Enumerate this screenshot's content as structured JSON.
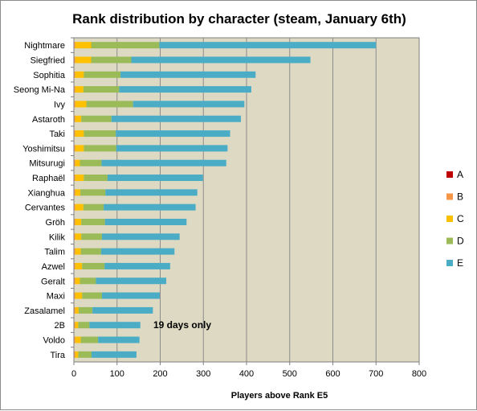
{
  "chart_data": {
    "type": "bar",
    "orientation": "horizontal",
    "stacked": true,
    "title": "Rank distribution by character (steam, January 6th)",
    "xlabel": "Players above Rank E5",
    "ylabel": "",
    "xlim": [
      0,
      800
    ],
    "xticks": [
      0,
      100,
      200,
      300,
      400,
      500,
      600,
      700,
      800
    ],
    "grid": true,
    "legend_position": "right",
    "categories": [
      "Nightmare",
      "Siegfried",
      "Sophitia",
      "Seong Mi-Na",
      "Ivy",
      "Astaroth",
      "Taki",
      "Yoshimitsu",
      "Mitsurugi",
      "Raphaël",
      "Xianghua",
      "Cervantes",
      "Gröh",
      "Kilik",
      "Talim",
      "Azwel",
      "Geralt",
      "Maxi",
      "Zasalamel",
      "2B",
      "Voldo",
      "Tira"
    ],
    "series": [
      {
        "name": "A",
        "color": "#c00000",
        "values": [
          1,
          1,
          1,
          1,
          1,
          1,
          1,
          1,
          1,
          1,
          1,
          1,
          1,
          1,
          1,
          1,
          1,
          1,
          1,
          1,
          1,
          1
        ]
      },
      {
        "name": "B",
        "color": "#f79646",
        "values": [
          2,
          2,
          2,
          2,
          2,
          2,
          2,
          2,
          2,
          2,
          2,
          2,
          2,
          2,
          2,
          2,
          2,
          2,
          2,
          2,
          2,
          2
        ]
      },
      {
        "name": "C",
        "color": "#ffc000",
        "values": [
          37,
          37,
          20,
          19,
          26,
          14,
          20,
          20,
          11,
          20,
          12,
          19,
          14,
          14,
          13,
          16,
          11,
          16,
          8,
          7,
          13,
          7
        ]
      },
      {
        "name": "D",
        "color": "#9bbb59",
        "values": [
          158,
          93,
          85,
          83,
          108,
          70,
          74,
          75,
          50,
          55,
          58,
          47,
          55,
          48,
          47,
          52,
          37,
          46,
          32,
          26,
          40,
          31
        ]
      },
      {
        "name": "E",
        "color": "#4bacc6",
        "values": [
          502,
          415,
          313,
          306,
          258,
          300,
          265,
          258,
          289,
          221,
          213,
          213,
          189,
          180,
          170,
          152,
          163,
          134,
          140,
          118,
          96,
          104
        ]
      }
    ],
    "annotation": "19 days only"
  }
}
